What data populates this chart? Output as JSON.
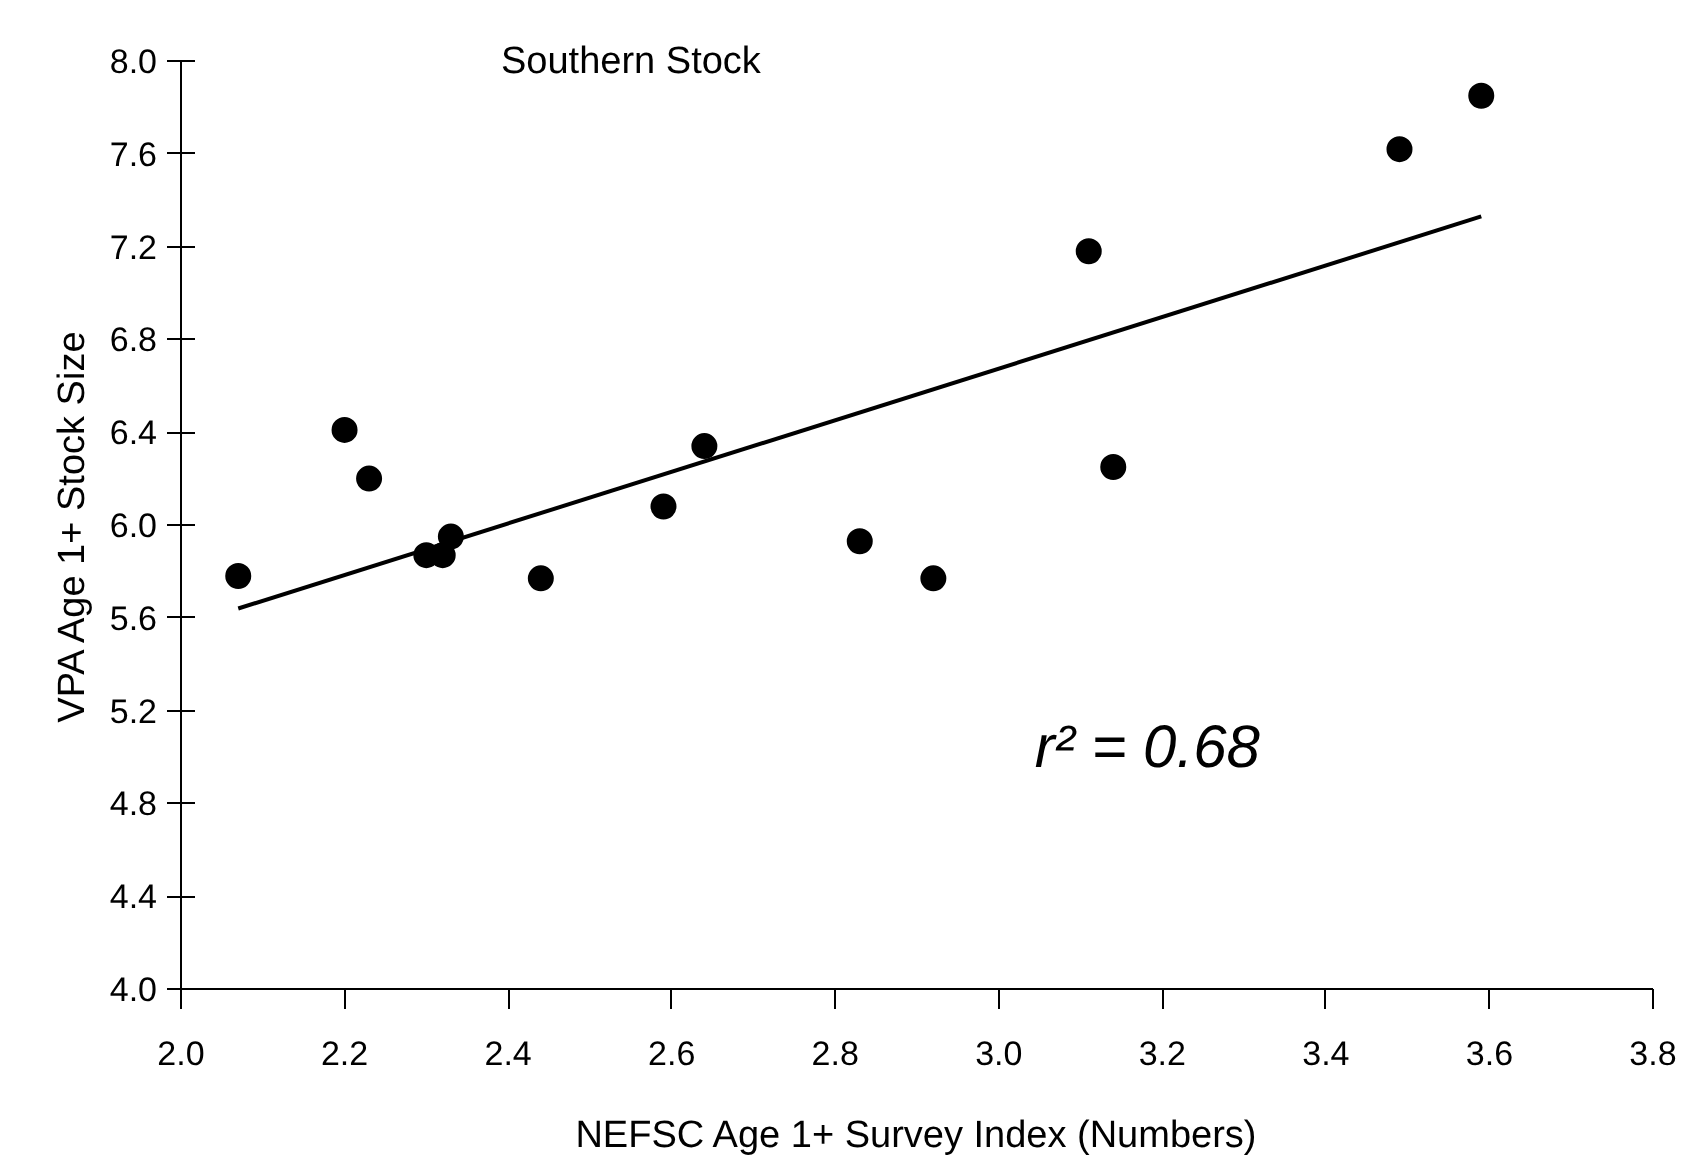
{
  "chart_data": {
    "type": "scatter",
    "title": "Southern Stock",
    "xlabel": "NEFSC Age 1+ Survey Index (Numbers)",
    "ylabel": "VPA Age 1+ Stock Size",
    "xlim": [
      2.0,
      3.8
    ],
    "xticks": [
      {
        "value": 2.0,
        "label": "2.0"
      },
      2.2,
      2.4,
      2.6,
      2.8,
      {
        "value": 3.0,
        "label": "3.0"
      },
      3.2,
      3.4,
      3.6,
      3.8
    ],
    "ylim": [
      4.0,
      8.0
    ],
    "yticks": [
      {
        "value": 4.0,
        "label": "4.0"
      },
      4.4,
      4.8,
      5.2,
      5.6,
      {
        "value": 6.0,
        "label": "6.0"
      },
      6.4,
      6.8,
      7.2,
      7.6,
      {
        "value": 8.0,
        "label": "8.0"
      }
    ],
    "grid": false,
    "annotations": [
      "r² = 0.68"
    ],
    "series": [
      {
        "marker": "circle",
        "color": "#000000",
        "x": [
          2.07,
          2.2,
          2.23,
          2.3,
          2.32,
          2.33,
          2.44,
          2.59,
          2.64,
          2.83,
          2.92,
          3.11,
          3.14,
          3.49,
          3.59
        ],
        "values": [
          5.78,
          6.41,
          6.2,
          5.87,
          5.87,
          5.95,
          5.77,
          6.08,
          6.34,
          5.93,
          5.77,
          7.18,
          6.25,
          7.62,
          7.85
        ]
      },
      {
        "type": "line",
        "color": "#000000",
        "line_style": "solid",
        "x": [
          2.07,
          3.59
        ],
        "values": [
          5.64,
          7.33
        ]
      }
    ]
  }
}
